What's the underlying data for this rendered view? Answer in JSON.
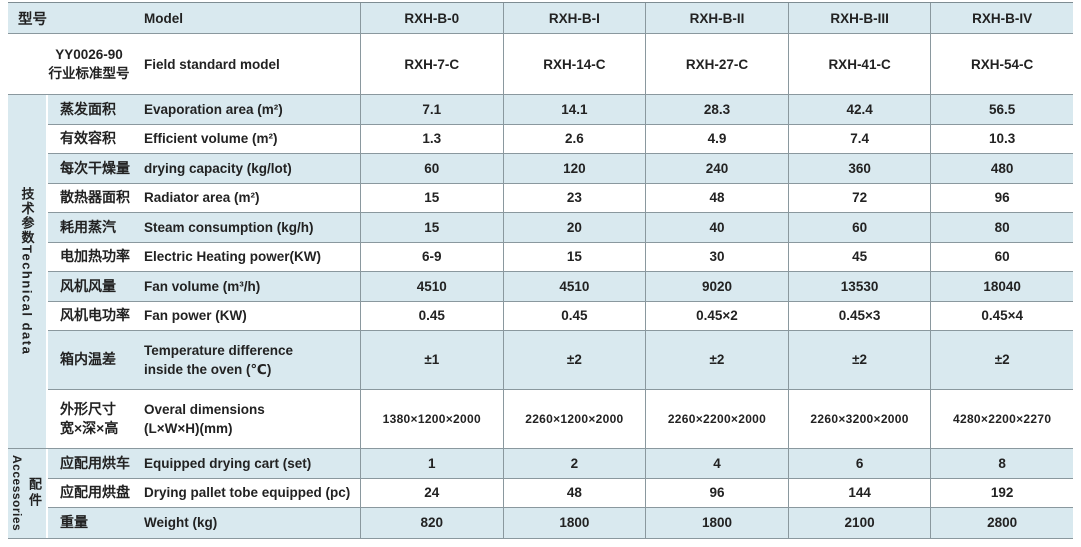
{
  "header": {
    "model": {
      "cn": "型号",
      "en": "Model",
      "values": [
        "RXH-B-0",
        "RXH-B-I",
        "RXH-B-II",
        "RXH-B-III",
        "RXH-B-IV"
      ]
    },
    "standard": {
      "cn_line1": "YY0026-90",
      "cn_line2": "行业标准型号",
      "en": "Field standard model",
      "values": [
        "RXH-7-C",
        "RXH-14-C",
        "RXH-27-C",
        "RXH-41-C",
        "RXH-54-C"
      ]
    }
  },
  "sections": [
    {
      "id": "technical",
      "label_cn": "技术参数",
      "label_en": "Technical data",
      "rows": [
        {
          "cn": "蒸发面积",
          "en": "Evaporation area (m²)",
          "values": [
            "7.1",
            "14.1",
            "28.3",
            "42.4",
            "56.5"
          ]
        },
        {
          "cn": "有效容积",
          "en": "Efficient volume (m²)",
          "values": [
            "1.3",
            "2.6",
            "4.9",
            "7.4",
            "10.3"
          ]
        },
        {
          "cn": "每次干燥量",
          "en": "drying capacity (kg/lot)",
          "values": [
            "60",
            "120",
            "240",
            "360",
            "480"
          ]
        },
        {
          "cn": "散热器面积",
          "en": "Radiator area (m²)",
          "values": [
            "15",
            "23",
            "48",
            "72",
            "96"
          ]
        },
        {
          "cn": "耗用蒸汽",
          "en": "Steam consumption (kg/h)",
          "values": [
            "15",
            "20",
            "40",
            "60",
            "80"
          ]
        },
        {
          "cn": "电加热功率",
          "en": "Electric Heating power(KW)",
          "values": [
            "6-9",
            "15",
            "30",
            "45",
            "60"
          ]
        },
        {
          "cn": "风机风量",
          "en": "Fan volume (m³/h)",
          "values": [
            "4510",
            "4510",
            "9020",
            "13530",
            "18040"
          ]
        },
        {
          "cn": "风机电功率",
          "en": "Fan power (KW)",
          "values": [
            "0.45",
            "0.45",
            "0.45×2",
            "0.45×3",
            "0.45×4"
          ]
        },
        {
          "cn": "箱内温差",
          "en": "Temperature difference",
          "en2": "inside the oven (℃)",
          "values": [
            "±1",
            "±2",
            "±2",
            "±2",
            "±2"
          ]
        },
        {
          "cn": "外形尺寸",
          "cn2": "宽×深×高",
          "en": "Overal dimensions",
          "en2": "(L×W×H)(mm)",
          "values": [
            "1380×1200×2000",
            "2260×1200×2000",
            "2260×2200×2000",
            "2260×3200×2000",
            "4280×2200×2270"
          ]
        }
      ]
    },
    {
      "id": "accessories",
      "label_cn": "配件",
      "label_en": "Accessories",
      "rows": [
        {
          "cn": "应配用烘车",
          "en": "Equipped drying cart (set)",
          "values": [
            "1",
            "2",
            "4",
            "6",
            "8"
          ]
        },
        {
          "cn": "应配用烘盘",
          "en": "Drying pallet tobe equipped (pc)",
          "values": [
            "24",
            "48",
            "96",
            "144",
            "192"
          ]
        },
        {
          "cn": "重量",
          "en": "Weight (kg)",
          "values": [
            "820",
            "1800",
            "1800",
            "2100",
            "2800"
          ]
        }
      ]
    }
  ],
  "colors": {
    "row_shaded": "#d9e9ef",
    "grid_line": "#8a989e"
  }
}
